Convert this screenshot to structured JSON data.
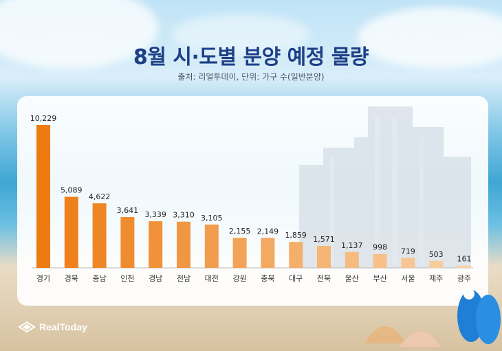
{
  "title": "8월 시·도별 분양 예정 물량",
  "subtitle": "출처: 리얼투데이, 단위: 가구 수(일반분양)",
  "logo": {
    "text": "RealToday"
  },
  "colors": {
    "bar_dark": "#ee7a12",
    "bar_light": "#f8d2a6",
    "title": "#1d3f86"
  },
  "chart_data": {
    "type": "bar",
    "title": "8월 시·도별 분양 예정 물량",
    "subtitle": "출처: 리얼투데이, 단위: 가구 수(일반분양)",
    "categories": [
      "경기",
      "경북",
      "충남",
      "인천",
      "경남",
      "전남",
      "대전",
      "강원",
      "충북",
      "대구",
      "전북",
      "울산",
      "부산",
      "서울",
      "제주",
      "광주"
    ],
    "values": [
      10229,
      5089,
      4622,
      3641,
      3339,
      3310,
      3105,
      2155,
      2149,
      1859,
      1571,
      1137,
      998,
      719,
      503,
      161
    ],
    "labels": [
      "10,229",
      "5,089",
      "4,622",
      "3,641",
      "3,339",
      "3,310",
      "3,105",
      "2,155",
      "2,149",
      "1,859",
      "1,571",
      "1,137",
      "998",
      "719",
      "503",
      "161"
    ],
    "ylim": [
      0,
      10229
    ],
    "grid": false,
    "legend": "none"
  }
}
